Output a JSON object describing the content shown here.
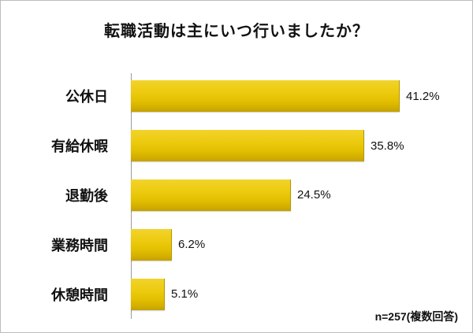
{
  "title": "転職活動は主にいつ行いましたか？",
  "note": "n=257(複数回答)",
  "colors": {
    "bar_main": "#e3c000",
    "bar_highlight": "#f2d32a",
    "bar_shadow": "#c3a000",
    "axis": "#9a9a9a",
    "text": "#111111",
    "frame_border": "#bdbdbd"
  },
  "chart_data": {
    "type": "bar",
    "orientation": "horizontal",
    "title": "転職活動は主にいつ行いましたか？",
    "categories": [
      "公休日",
      "有給休暇",
      "退勤後",
      "業務時間",
      "休憩時間"
    ],
    "values": [
      41.2,
      35.8,
      24.5,
      6.2,
      5.1
    ],
    "value_labels": [
      "41.2%",
      "35.8%",
      "24.5%",
      "6.2%",
      "5.1%"
    ],
    "xlabel": "",
    "ylabel": "",
    "xlim": [
      0,
      45
    ],
    "grid": false,
    "legend": false,
    "annotation": "n=257(複数回答)"
  }
}
